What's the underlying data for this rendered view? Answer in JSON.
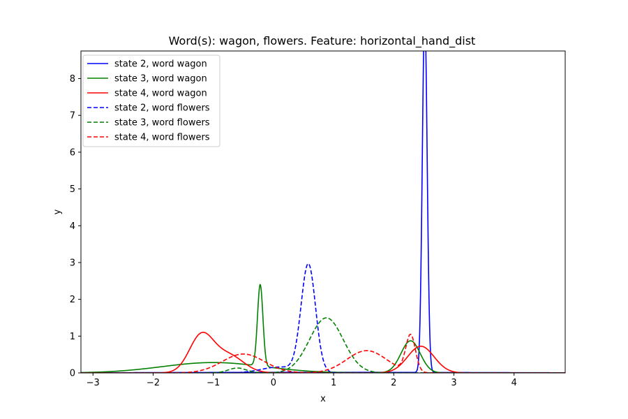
{
  "chart_data": {
    "type": "line",
    "title": "Word(s): wagon, flowers. Feature: horizontal_hand_dist",
    "xlabel": "x",
    "ylabel": "y",
    "xlim": [
      -3.2,
      4.85
    ],
    "ylim": [
      0,
      8.75
    ],
    "xticks": [
      -3,
      -2,
      -1,
      0,
      1,
      2,
      3,
      4
    ],
    "xtick_labels": [
      "−3",
      "−2",
      "−1",
      "0",
      "1",
      "2",
      "3",
      "4"
    ],
    "yticks": [
      0,
      1,
      2,
      3,
      4,
      5,
      6,
      7,
      8
    ],
    "ytick_labels": [
      "0",
      "1",
      "2",
      "3",
      "4",
      "5",
      "6",
      "7",
      "8"
    ],
    "grid": false,
    "legend_position": "upper-left",
    "series": [
      {
        "name": "state 2, word wagon",
        "color": "#0000ff",
        "dash": "solid",
        "components": [
          {
            "w": 0.98,
            "mu": 2.515,
            "sigma": 0.04
          },
          {
            "w": 0.1,
            "mu": 0.8,
            "sigma": 2.5
          }
        ]
      },
      {
        "name": "state 3, word wagon",
        "color": "#008000",
        "dash": "solid",
        "components": [
          {
            "w": 0.25,
            "mu": -0.22,
            "sigma": 0.045
          },
          {
            "w": 0.6,
            "mu": -1.0,
            "sigma": 0.85
          },
          {
            "w": 0.35,
            "mu": 2.28,
            "sigma": 0.16
          }
        ]
      },
      {
        "name": "state 4, word wagon",
        "color": "#ff0000",
        "dash": "solid",
        "components": [
          {
            "w": 0.5,
            "mu": -1.2,
            "sigma": 0.2
          },
          {
            "w": 0.3,
            "mu": -0.75,
            "sigma": 0.25
          },
          {
            "w": 0.4,
            "mu": 2.45,
            "sigma": 0.22
          }
        ]
      },
      {
        "name": "state 2, word flowers",
        "color": "#0000ff",
        "dash": "dashed",
        "components": [
          {
            "w": 0.88,
            "mu": 0.58,
            "sigma": 0.12
          },
          {
            "w": 0.12,
            "mu": 0.1,
            "sigma": 0.3
          }
        ]
      },
      {
        "name": "state 3, word flowers",
        "color": "#008000",
        "dash": "dashed",
        "components": [
          {
            "w": 1.05,
            "mu": 0.88,
            "sigma": 0.28
          },
          {
            "w": 0.05,
            "mu": -0.6,
            "sigma": 0.15
          }
        ]
      },
      {
        "name": "state 4, word flowers",
        "color": "#ff0000",
        "dash": "dashed",
        "components": [
          {
            "w": 0.45,
            "mu": -0.5,
            "sigma": 0.35
          },
          {
            "w": 0.5,
            "mu": 1.55,
            "sigma": 0.33
          },
          {
            "w": 0.2,
            "mu": 2.28,
            "sigma": 0.08
          }
        ]
      }
    ]
  }
}
